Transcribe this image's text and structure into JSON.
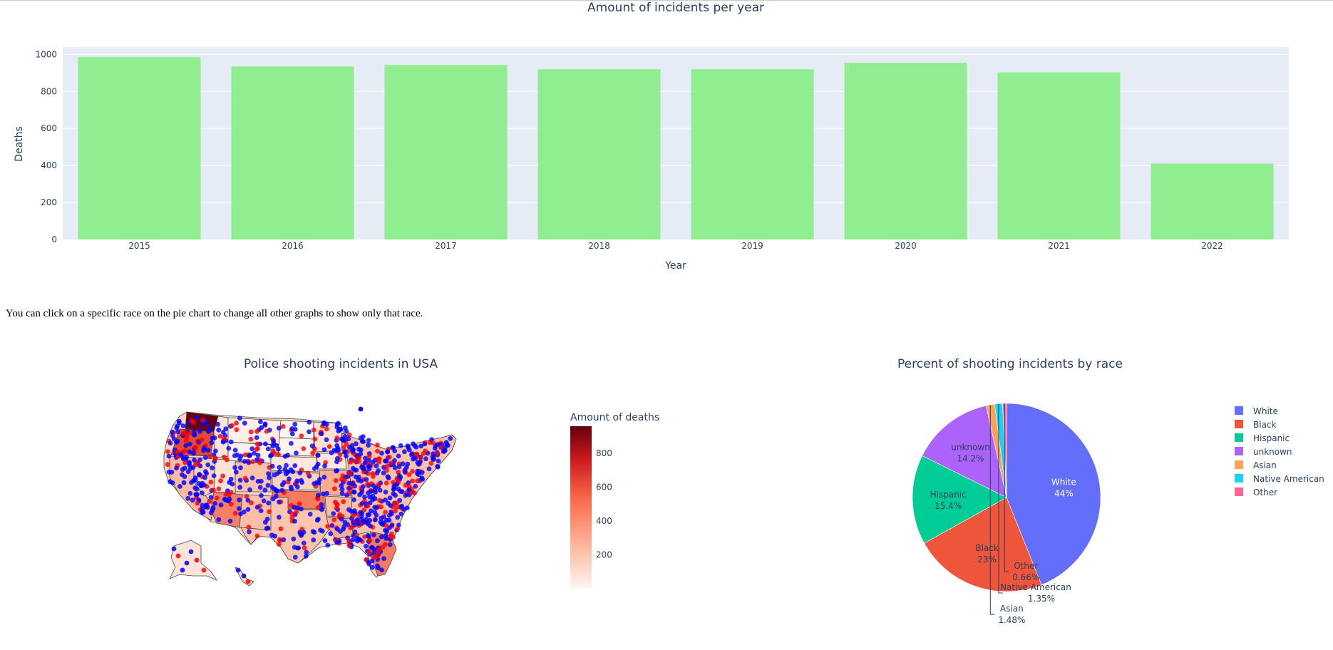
{
  "note": "You can click on a specific race on the pie chart to change all other graphs to show only that race.",
  "colors": {
    "bar_fill": "#90ee90",
    "plot_bg": "#e5ecf6",
    "text": "#2a3f5f",
    "dots_blue": "#0000ff",
    "dots_red": "#ff0000"
  },
  "chart_data": [
    {
      "type": "bar",
      "title": "Amount of incidents per year",
      "xlabel": "Year",
      "ylabel": "Deaths",
      "categories": [
        "2015",
        "2016",
        "2017",
        "2018",
        "2019",
        "2020",
        "2021",
        "2022"
      ],
      "values": [
        985,
        935,
        943,
        920,
        920,
        955,
        903,
        410
      ],
      "ylim": [
        0,
        1040
      ],
      "yticks": [
        0,
        200,
        400,
        600,
        800,
        1000
      ],
      "grid": true
    },
    {
      "type": "map",
      "title": "Police shooting incidents in USA",
      "colorbar_title": "Amount of deaths",
      "colorbar_ticks": [
        200,
        400,
        600,
        800
      ],
      "colorbar_range": [
        0,
        960
      ],
      "colorscale": [
        "#fff5f0",
        "#fcbba1",
        "#fb6a4a",
        "#cb181d",
        "#67000d"
      ]
    },
    {
      "type": "pie",
      "title": "Percent of shooting incidents by race",
      "legend_position": "right",
      "slices": [
        {
          "label": "White",
          "pct_label": "44%",
          "value": 43.97,
          "color": "#636efa"
        },
        {
          "label": "Black",
          "pct_label": "23%",
          "value": 23.0,
          "color": "#ef553b"
        },
        {
          "label": "Hispanic",
          "pct_label": "15.4%",
          "value": 15.4,
          "color": "#00cc96"
        },
        {
          "label": "unknown",
          "pct_label": "14.2%",
          "value": 14.2,
          "color": "#ab63fa"
        },
        {
          "label": "Asian",
          "pct_label": "1.48%",
          "value": 1.48,
          "color": "#ffa15a"
        },
        {
          "label": "Native American",
          "pct_label": "1.35%",
          "value": 1.35,
          "color": "#19d3f3"
        },
        {
          "label": "Other",
          "pct_label": "0.66%",
          "value": 0.66,
          "color": "#ff6692"
        }
      ]
    }
  ]
}
